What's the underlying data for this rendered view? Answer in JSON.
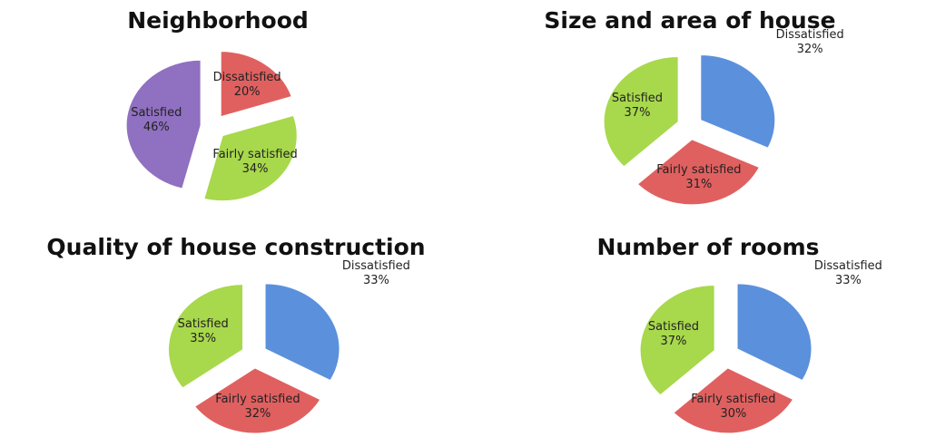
{
  "chart_data": [
    {
      "type": "pie",
      "title": "Neighborhood",
      "categories": [
        "Dissatisfied",
        "Fairly satisfied",
        "Satisfied"
      ],
      "values": [
        20,
        34,
        46
      ],
      "value_labels": [
        "20%",
        "34%",
        "46%"
      ],
      "colors": [
        "#e06060",
        "#a8d84c",
        "#9070c0"
      ]
    },
    {
      "type": "pie",
      "title": "Size and area of house",
      "categories": [
        "Dissatisfied",
        "Fairly satisfied",
        "Satisfied"
      ],
      "values": [
        32,
        31,
        37
      ],
      "value_labels": [
        "32%",
        "31%",
        "37%"
      ],
      "colors": [
        "#5b90dc",
        "#e06060",
        "#a8d84c"
      ]
    },
    {
      "type": "pie",
      "title": "Quality of house construction",
      "categories": [
        "Dissatisfied",
        "Fairly satisfied",
        "Satisfied"
      ],
      "values": [
        33,
        32,
        35
      ],
      "value_labels": [
        "33%",
        "32%",
        "35%"
      ],
      "colors": [
        "#5b90dc",
        "#e06060",
        "#a8d84c"
      ]
    },
    {
      "type": "pie",
      "title": "Number of rooms",
      "categories": [
        "Dissatisfied",
        "Fairly satisfied",
        "Satisfied"
      ],
      "values": [
        33,
        30,
        37
      ],
      "value_labels": [
        "33%",
        "30%",
        "37%"
      ],
      "colors": [
        "#5b90dc",
        "#e06060",
        "#a8d84c"
      ]
    }
  ]
}
